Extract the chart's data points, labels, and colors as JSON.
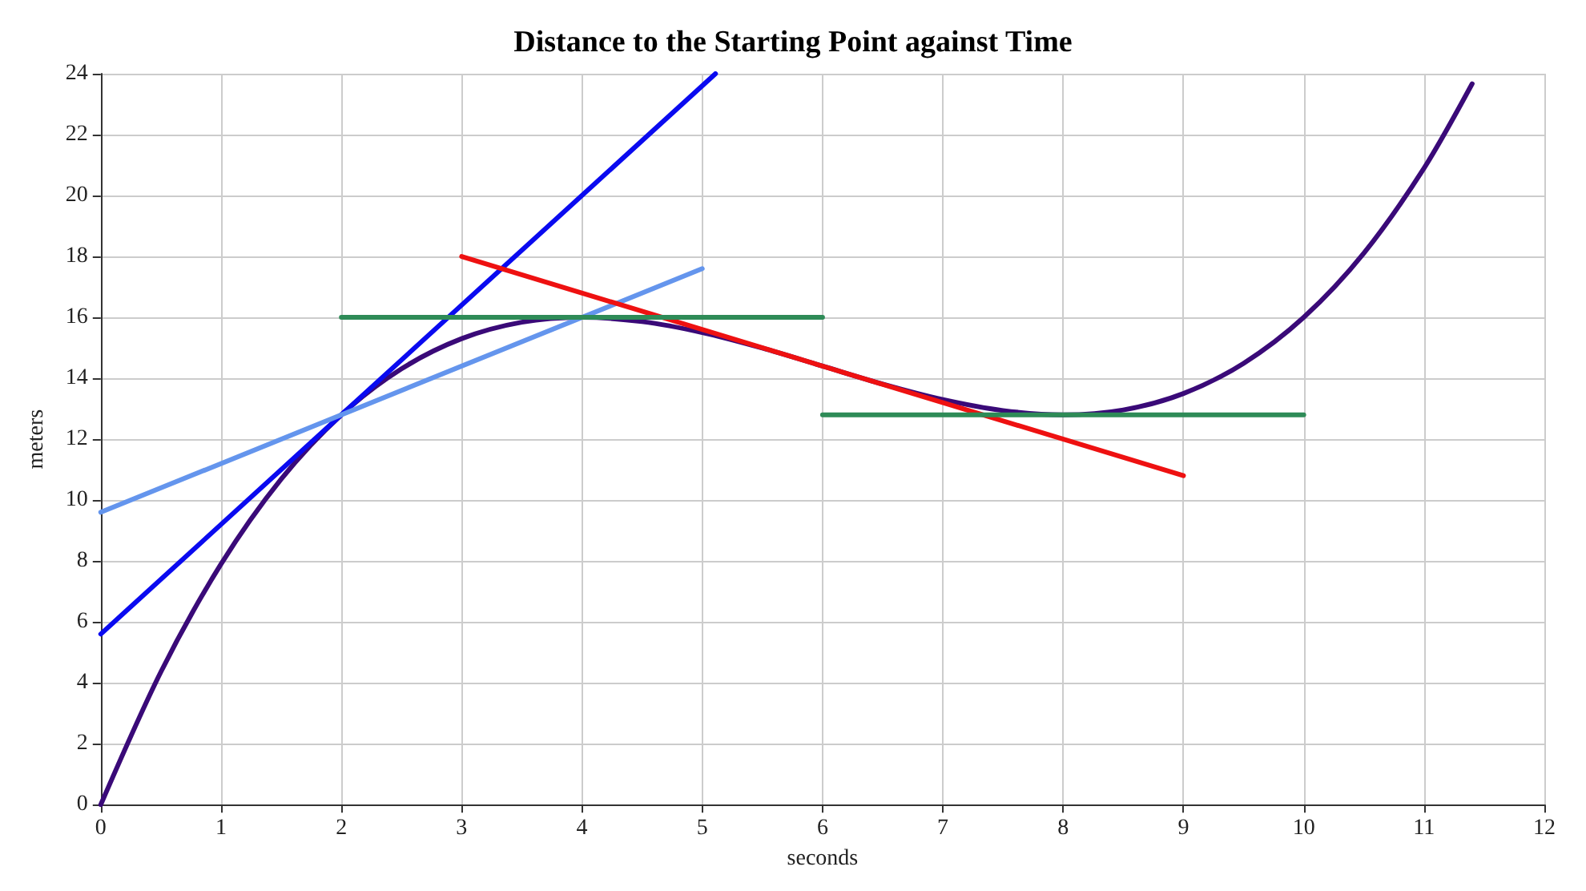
{
  "chart_data": {
    "type": "line",
    "title": "Distance to the Starting Point against Time",
    "xlabel": "seconds",
    "ylabel": "meters",
    "xlim": [
      0,
      12
    ],
    "xticks": [
      0,
      1,
      2,
      3,
      4,
      5,
      6,
      7,
      8,
      9,
      10,
      11,
      12
    ],
    "ylim": [
      0,
      24
    ],
    "yticks": [
      0,
      2,
      4,
      6,
      8,
      10,
      12,
      14,
      16,
      18,
      20,
      22,
      24
    ],
    "grid": true,
    "marker": "none",
    "line_style": "solid",
    "series": [
      {
        "color": "#3a0a78",
        "x": [
          0,
          0.5,
          1,
          1.5,
          2,
          2.5,
          3,
          3.5,
          4,
          4.5,
          5,
          5.5,
          6,
          6.5,
          7,
          7.5,
          8,
          8.5,
          9,
          9.5,
          10,
          10.5,
          11,
          11.4
        ],
        "values": [
          0,
          4.36,
          7.9,
          10.69,
          12.8,
          14.31,
          15.3,
          15.84,
          16,
          15.86,
          15.5,
          14.99,
          14.4,
          13.81,
          13.3,
          12.94,
          12.8,
          12.96,
          13.5,
          14.49,
          16,
          18.11,
          20.9,
          23.67
        ]
      },
      {
        "color": "#0a0af0",
        "x": [
          0,
          5.11
        ],
        "values": [
          5.6,
          24
        ]
      },
      {
        "color": "#6495ed",
        "x": [
          0,
          5
        ],
        "values": [
          9.6,
          17.6
        ]
      },
      {
        "color": "#ee1111",
        "x": [
          3,
          9
        ],
        "values": [
          18,
          10.8
        ]
      },
      {
        "color": "#2e8b57",
        "x": [
          2,
          6
        ],
        "values": [
          16,
          16
        ]
      },
      {
        "color": "#2e8b57",
        "x": [
          6,
          10
        ],
        "values": [
          12.8,
          12.8
        ]
      }
    ]
  }
}
